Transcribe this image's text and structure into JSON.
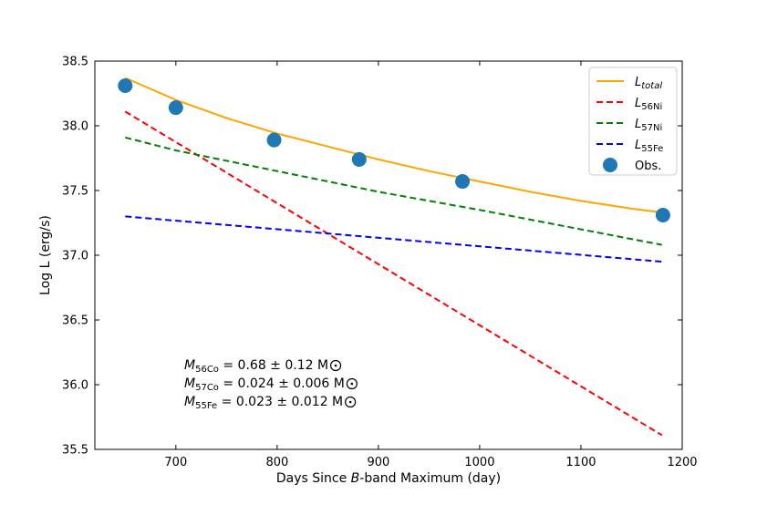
{
  "chart_data": {
    "type": "line",
    "xlabel_pre": "Days Since ",
    "xlabel_em": "B",
    "xlabel_post": "-band Maximum (day)",
    "ylabel": "Log L (erg/s)",
    "xlim": [
      620,
      1200
    ],
    "ylim": [
      35.5,
      38.5
    ],
    "xticks": [
      700,
      800,
      900,
      1000,
      1100,
      1200
    ],
    "yticks": [
      35.5,
      36.0,
      36.5,
      37.0,
      37.5,
      38.0,
      38.5
    ],
    "colors": {
      "total": "#ffa500",
      "ni56": "#ff0000",
      "ni57": "#008000",
      "fe55": "#0000ff",
      "obs": "#1f77b4"
    },
    "series": [
      {
        "id": "total",
        "name": "L",
        "sub": "total",
        "style": "solid",
        "x": [
          650,
          700,
          750,
          800,
          850,
          900,
          950,
          1000,
          1050,
          1100,
          1150,
          1180
        ],
        "y": [
          38.37,
          38.2,
          38.06,
          37.94,
          37.84,
          37.74,
          37.65,
          37.57,
          37.49,
          37.42,
          37.36,
          37.33
        ]
      },
      {
        "id": "ni56",
        "name": "L",
        "sub": "56Ni",
        "style": "dashed",
        "x": [
          650,
          1180
        ],
        "y": [
          38.11,
          35.61
        ]
      },
      {
        "id": "ni57",
        "name": "L",
        "sub": "57Ni",
        "style": "dashed",
        "x": [
          650,
          700,
          800,
          900,
          1000,
          1100,
          1180
        ],
        "y": [
          37.91,
          37.81,
          37.65,
          37.49,
          37.35,
          37.2,
          37.08
        ]
      },
      {
        "id": "fe55",
        "name": "L",
        "sub": "55Fe",
        "style": "dashed",
        "x": [
          650,
          1180
        ],
        "y": [
          37.3,
          36.95
        ]
      }
    ],
    "observations": {
      "name": "Obs.",
      "x": [
        650,
        700,
        797,
        881,
        983,
        1181
      ],
      "y": [
        38.31,
        38.14,
        37.89,
        37.74,
        37.57,
        37.31
      ]
    },
    "annotations": [
      {
        "sym": "M",
        "sub": "56Co",
        "text": " = 0.68 ± 0.12 M"
      },
      {
        "sym": "M",
        "sub": "57Co",
        "text": " = 0.024 ± 0.006 M"
      },
      {
        "sym": "M",
        "sub": "55Fe",
        "text": " = 0.023 ± 0.012 M"
      }
    ],
    "legend_position": "top-right"
  }
}
